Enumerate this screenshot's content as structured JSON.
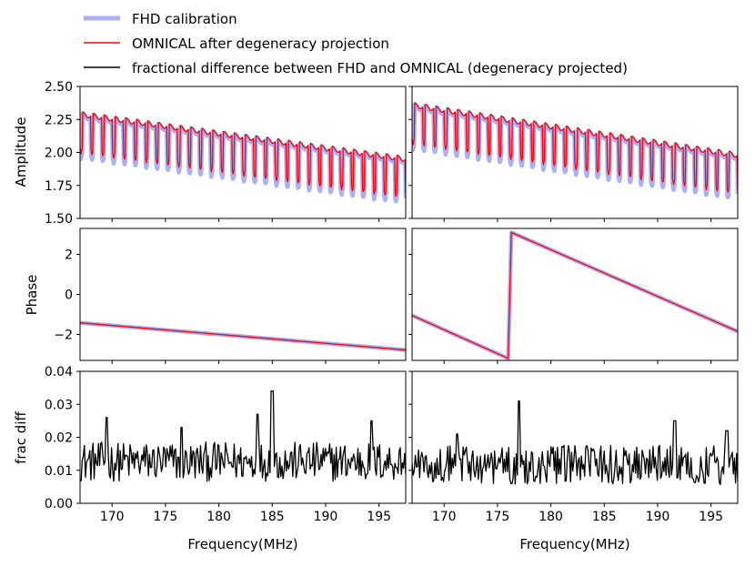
{
  "chart_data": {
    "type": "line",
    "title": "",
    "legend": {
      "placement": "top-left, above the panels",
      "entries": [
        {
          "label": "FHD calibration",
          "color": "#aab0f5"
        },
        {
          "label": "OMNICAL after degeneracy projection",
          "color": "#ff0000"
        },
        {
          "label": "fractional difference between FHD and OMNICAL (degeneracy projected)",
          "color": "#000000"
        }
      ]
    },
    "xlabel": "Frequency(MHz)",
    "xlim": [
      167,
      197.5
    ],
    "xticks": [
      170,
      175,
      180,
      185,
      190,
      195
    ],
    "rows": [
      {
        "ylabel": "Amplitude",
        "ylim": [
          1.5,
          2.5
        ],
        "yticks": [
          "1.50",
          "1.75",
          "2.00",
          "2.25",
          "2.50"
        ],
        "ytick_values": [
          1.5,
          1.75,
          2.0,
          2.25,
          2.5
        ]
      },
      {
        "ylabel": "Phase",
        "ylim": [
          -3.3,
          3.3
        ],
        "yticks": [
          "−2",
          "0",
          "2"
        ],
        "ytick_values": [
          -2,
          0,
          2
        ]
      },
      {
        "ylabel": "frac diff",
        "ylim": [
          0,
          0.04
        ],
        "yticks": [
          "0.00",
          "0.01",
          "0.02",
          "0.03",
          "0.04"
        ],
        "ytick_values": [
          0,
          0.01,
          0.02,
          0.03,
          0.04
        ]
      }
    ],
    "panels": [
      {
        "column": "left",
        "amplitude": {
          "start": 2.29,
          "end": 1.95,
          "dip_depth": 0.3,
          "cycles": 30,
          "fhd_offset": -0.04
        },
        "phase": {
          "points": [
            [
              167,
              -1.42
            ],
            [
              197.5,
              -2.78
            ]
          ]
        },
        "frac_diff": {
          "baseline": 0.012,
          "noise": 0.006,
          "peaks": [
            [
              185,
              0.034
            ],
            [
              169.5,
              0.026
            ],
            [
              183.6,
              0.027
            ],
            [
              176.5,
              0.023
            ],
            [
              194.3,
              0.025
            ]
          ]
        }
      },
      {
        "column": "right",
        "amplitude": {
          "start": 2.36,
          "end": 1.98,
          "dip_depth": 0.3,
          "cycles": 30,
          "fhd_offset": -0.04
        },
        "phase": {
          "points": [
            [
              167,
              -1.05
            ],
            [
              176.0,
              -3.2
            ],
            [
              176.3,
              3.1
            ],
            [
              197.5,
              -1.85
            ]
          ]
        },
        "frac_diff": {
          "baseline": 0.011,
          "noise": 0.006,
          "peaks": [
            [
              177.0,
              0.031
            ],
            [
              191.6,
              0.025
            ],
            [
              171.2,
              0.021
            ],
            [
              196.5,
              0.022
            ]
          ]
        }
      }
    ]
  }
}
